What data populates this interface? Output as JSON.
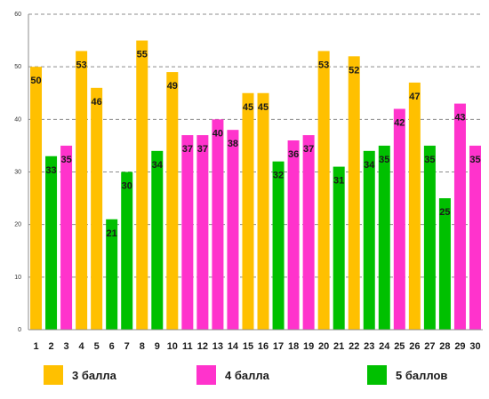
{
  "chart_data": {
    "type": "bar",
    "categories": [
      "1",
      "2",
      "3",
      "4",
      "5",
      "6",
      "7",
      "8",
      "9",
      "10",
      "11",
      "12",
      "13",
      "14",
      "15",
      "16",
      "17",
      "18",
      "19",
      "20",
      "21",
      "22",
      "23",
      "24",
      "25",
      "26",
      "27",
      "28",
      "29",
      "30"
    ],
    "values": [
      50,
      33,
      35,
      53,
      46,
      21,
      30,
      55,
      34,
      49,
      37,
      37,
      40,
      38,
      45,
      45,
      32,
      36,
      37,
      53,
      31,
      52,
      34,
      35,
      42,
      47,
      35,
      25,
      43,
      35
    ],
    "groups": [
      "3",
      "5",
      "4",
      "3",
      "3",
      "5",
      "5",
      "3",
      "5",
      "3",
      "4",
      "4",
      "4",
      "4",
      "3",
      "3",
      "5",
      "4",
      "4",
      "3",
      "5",
      "3",
      "5",
      "5",
      "4",
      "3",
      "5",
      "5",
      "4",
      "4"
    ],
    "ylim": [
      0,
      60
    ],
    "yticks": [
      0,
      10,
      20,
      30,
      40,
      50,
      60
    ],
    "grid": true,
    "legend": [
      {
        "key": "3",
        "name": "3 балла",
        "color": "#FFC000"
      },
      {
        "key": "4",
        "name": "4 балла",
        "color": "#FF33CC"
      },
      {
        "key": "5",
        "name": "5 баллов",
        "color": "#00C000"
      }
    ],
    "legend_position": "bottom"
  }
}
